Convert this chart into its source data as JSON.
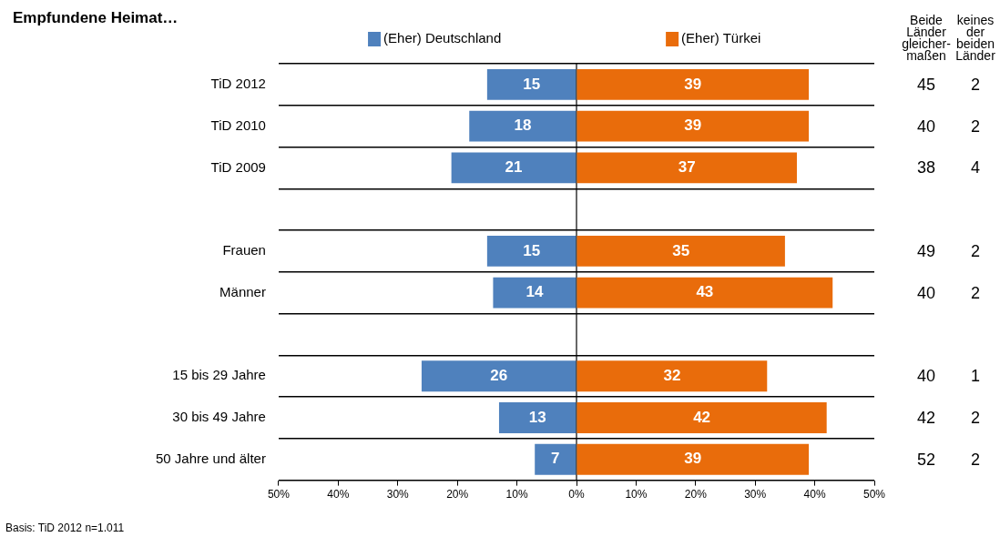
{
  "chart_data": [
    {
      "type": "bar",
      "orientation": "horizontal",
      "title": "Empfundene Heimat…",
      "categories": [
        "TiD 2012",
        "TiD 2010",
        "TiD 2009",
        null,
        "Frauen",
        "Männer",
        null,
        "15 bis 29 Jahre",
        "30 bis 49 Jahre",
        "50 Jahre und älter"
      ],
      "series": [
        {
          "name": "(Eher) Deutschland",
          "color": "#4f81bd",
          "values": [
            15,
            18,
            21,
            null,
            15,
            14,
            null,
            26,
            13,
            7
          ]
        }
      ],
      "data_labels": true,
      "xlim": [
        50,
        0
      ],
      "xticks": [
        {
          "value": 50,
          "label": "50%"
        },
        {
          "value": 40,
          "label": "40%"
        },
        {
          "value": 30,
          "label": "30%"
        },
        {
          "value": 20,
          "label": "20%"
        },
        {
          "value": 10,
          "label": "10%"
        },
        {
          "value": 0,
          "label": "0%"
        }
      ],
      "grid": "y",
      "legend": "top",
      "ref_lines": [
        {
          "axis": "x",
          "value": 0,
          "color": "#000000"
        }
      ],
      "annotations": [
        "Basis: TiD 2012 n=1.011"
      ]
    },
    {
      "type": "bar",
      "orientation": "horizontal",
      "series": [
        {
          "name": "(Eher) Türkei",
          "color": "#e96c0b",
          "values": [
            39,
            39,
            37,
            null,
            35,
            43,
            null,
            32,
            42,
            39
          ]
        }
      ],
      "data_labels": true,
      "xlim": [
        0,
        50
      ],
      "xticks": [
        {
          "value": 0,
          "label": null
        },
        {
          "value": 10,
          "label": "10%"
        },
        {
          "value": 20,
          "label": "20%"
        },
        {
          "value": 30,
          "label": "30%"
        },
        {
          "value": 40,
          "label": "40%"
        },
        {
          "value": 50,
          "label": "50%"
        }
      ],
      "grid": "y",
      "legend": "top",
      "tick_labels": "x"
    },
    {
      "type": "other",
      "annotations": [
        "Beide Länder gleicher-maßen",
        "keines der beiden Länder",
        "45",
        "2",
        "40",
        "2",
        "38",
        "4",
        "49",
        "2",
        "40",
        "2",
        "40",
        "1",
        "42",
        "2",
        "52",
        "2"
      ]
    }
  ]
}
